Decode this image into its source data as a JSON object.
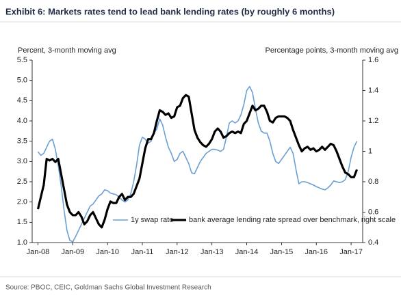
{
  "chart_data": {
    "type": "line",
    "title": "Exhibit 6: Markets rates tend to lead bank lending rates (by roughly 6 months)",
    "y_label": "Percent, 3-month moving avg",
    "y2_label": "Percentage points, 3-month moving avg",
    "source": "Source: PBOC, CEIC, Goldman Sachs Global Investment Research",
    "x": [
      "2008-01",
      "2008-02",
      "2008-03",
      "2008-04",
      "2008-05",
      "2008-06",
      "2008-07",
      "2008-08",
      "2008-09",
      "2008-10",
      "2008-11",
      "2008-12",
      "2009-01",
      "2009-02",
      "2009-03",
      "2009-04",
      "2009-05",
      "2009-06",
      "2009-07",
      "2009-08",
      "2009-09",
      "2009-10",
      "2009-11",
      "2009-12",
      "2010-01",
      "2010-02",
      "2010-03",
      "2010-04",
      "2010-05",
      "2010-06",
      "2010-07",
      "2010-08",
      "2010-09",
      "2010-10",
      "2010-11",
      "2010-12",
      "2011-01",
      "2011-02",
      "2011-03",
      "2011-04",
      "2011-05",
      "2011-06",
      "2011-07",
      "2011-08",
      "2011-09",
      "2011-10",
      "2011-11",
      "2011-12",
      "2012-01",
      "2012-02",
      "2012-03",
      "2012-04",
      "2012-05",
      "2012-06",
      "2012-07",
      "2012-08",
      "2012-09",
      "2012-10",
      "2012-11",
      "2012-12",
      "2013-01",
      "2013-02",
      "2013-03",
      "2013-04",
      "2013-05",
      "2013-06",
      "2013-07",
      "2013-08",
      "2013-09",
      "2013-10",
      "2013-11",
      "2013-12",
      "2014-01",
      "2014-02",
      "2014-03",
      "2014-04",
      "2014-05",
      "2014-06",
      "2014-07",
      "2014-08",
      "2014-09",
      "2014-10",
      "2014-11",
      "2014-12",
      "2015-01",
      "2015-02",
      "2015-03",
      "2015-04",
      "2015-05",
      "2015-06",
      "2015-07",
      "2015-08",
      "2015-09",
      "2015-10",
      "2015-11",
      "2015-12",
      "2016-01",
      "2016-02",
      "2016-03",
      "2016-04",
      "2016-05",
      "2016-06",
      "2016-07",
      "2016-08",
      "2016-09",
      "2016-10",
      "2016-11",
      "2016-12",
      "2017-01",
      "2017-02",
      "2017-03"
    ],
    "series": [
      {
        "name": "1y swap rate",
        "color": "#6a9fd4",
        "width": 1.6,
        "values": [
          3.24,
          3.15,
          3.2,
          3.35,
          3.5,
          3.55,
          3.3,
          2.9,
          2.4,
          1.8,
          1.3,
          1.05,
          1.02,
          1.15,
          1.3,
          1.45,
          1.6,
          1.75,
          1.9,
          1.95,
          2.05,
          2.15,
          2.2,
          2.3,
          2.28,
          2.22,
          2.2,
          2.18,
          2.12,
          2.05,
          2.0,
          2.05,
          2.2,
          2.5,
          2.9,
          3.4,
          3.6,
          3.55,
          3.45,
          3.5,
          3.7,
          3.8,
          4.05,
          3.9,
          3.6,
          3.35,
          3.2,
          3.0,
          3.05,
          3.2,
          3.25,
          3.1,
          2.95,
          2.72,
          2.7,
          2.85,
          3.0,
          3.1,
          3.2,
          3.25,
          3.3,
          3.3,
          3.28,
          3.25,
          3.3,
          3.6,
          3.95,
          4.0,
          3.95,
          4.0,
          4.15,
          4.4,
          4.75,
          4.85,
          4.7,
          4.3,
          3.95,
          3.75,
          3.7,
          3.7,
          3.5,
          3.2,
          3.0,
          2.95,
          3.05,
          3.15,
          3.25,
          3.35,
          3.2,
          2.8,
          2.45,
          2.5,
          2.5,
          2.48,
          2.45,
          2.42,
          2.38,
          2.35,
          2.32,
          2.3,
          2.35,
          2.42,
          2.52,
          2.5,
          2.48,
          2.5,
          2.55,
          2.75,
          3.1,
          3.35,
          3.5
        ]
      },
      {
        "name": "bank average lending rate spread over benchmark, right scale",
        "color": "#000000",
        "width": 3.2,
        "axis": "y2",
        "values": [
          0.62,
          0.7,
          0.78,
          0.95,
          0.94,
          0.95,
          0.93,
          0.95,
          0.85,
          0.75,
          0.65,
          0.6,
          0.58,
          0.58,
          0.6,
          0.57,
          0.52,
          0.54,
          0.58,
          0.6,
          0.56,
          0.52,
          0.5,
          0.55,
          0.62,
          0.67,
          0.66,
          0.66,
          0.7,
          0.72,
          0.68,
          0.7,
          0.7,
          0.72,
          0.77,
          0.82,
          0.92,
          1.02,
          1.08,
          1.08,
          1.12,
          1.2,
          1.27,
          1.26,
          1.24,
          1.25,
          1.22,
          1.23,
          1.29,
          1.3,
          1.35,
          1.37,
          1.36,
          1.25,
          1.14,
          1.09,
          1.06,
          1.04,
          1.03,
          1.05,
          1.08,
          1.13,
          1.15,
          1.13,
          1.09,
          1.1,
          1.12,
          1.13,
          1.12,
          1.13,
          1.12,
          1.18,
          1.2,
          1.25,
          1.3,
          1.27,
          1.28,
          1.3,
          1.3,
          1.26,
          1.2,
          1.19,
          1.22,
          1.23,
          1.23,
          1.23,
          1.22,
          1.2,
          1.14,
          1.09,
          1.04,
          1.0,
          1.02,
          1.03,
          1.01,
          1.02,
          1.0,
          1.01,
          1.03,
          1.01,
          1.03,
          1.05,
          1.04,
          1.0,
          0.95,
          0.9,
          0.86,
          0.85,
          0.83,
          0.83,
          0.88
        ]
      }
    ],
    "xlim": [
      "2007-11",
      "2017-05"
    ],
    "xticks": [
      {
        "value": "2008-01",
        "label": "Jan-08"
      },
      {
        "value": "2009-01",
        "label": "Jan-09"
      },
      {
        "value": "2010-01",
        "label": "Jan-10"
      },
      {
        "value": "2011-01",
        "label": "Jan-11"
      },
      {
        "value": "2012-01",
        "label": "Jan-12"
      },
      {
        "value": "2013-01",
        "label": "Jan-13"
      },
      {
        "value": "2014-01",
        "label": "Jan-14"
      },
      {
        "value": "2015-01",
        "label": "Jan-15"
      },
      {
        "value": "2016-01",
        "label": "Jan-16"
      },
      {
        "value": "2017-01",
        "label": "Jan-17"
      }
    ],
    "ylim": [
      1,
      5.5
    ],
    "yticks": [
      {
        "value": 1,
        "label": "1.0"
      },
      1.5,
      {
        "value": 2,
        "label": "2.0"
      },
      2.5,
      {
        "value": 3,
        "label": "3.0"
      },
      3.5,
      {
        "value": 4,
        "label": "4.0"
      },
      4.5,
      {
        "value": 5,
        "label": "5.0"
      },
      5.5
    ],
    "y2lim": [
      0.4,
      1.6
    ],
    "y2ticks": [
      0.4,
      0.6,
      0.8,
      1,
      1.2,
      1.4,
      1.6
    ],
    "legend": "bottom"
  }
}
